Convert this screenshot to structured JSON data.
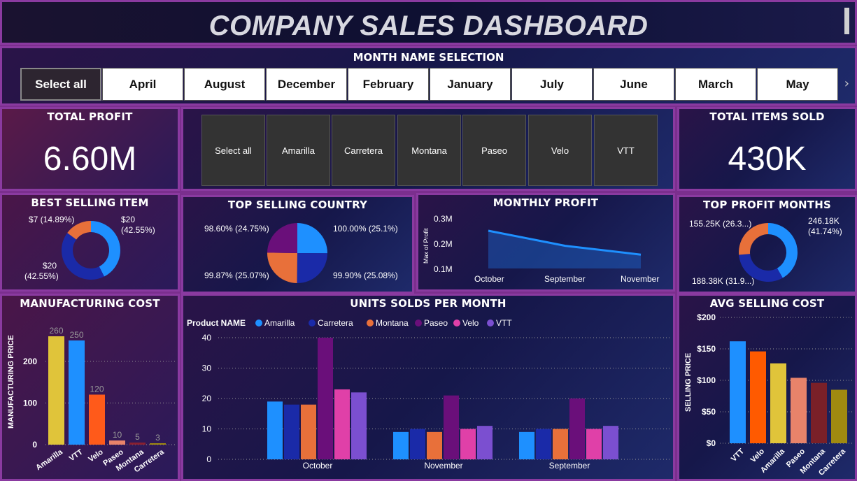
{
  "header": {
    "title": "COMPANY SALES DASHBOARD"
  },
  "month_slicer": {
    "label": "MONTH NAME SELECTION",
    "items": [
      "Select all",
      "April",
      "August",
      "December",
      "February",
      "January",
      "July",
      "June",
      "March",
      "May"
    ],
    "selected": "Select all"
  },
  "total_profit": {
    "title": "TOTAL PROFIT",
    "value": "6.60M"
  },
  "product_slicer": {
    "items": [
      "Select all",
      "Amarilla",
      "Carretera",
      "Montana",
      "Paseo",
      "Velo",
      "VTT"
    ]
  },
  "total_items": {
    "title": "TOTAL ITEMS SOLD",
    "value": "430K"
  },
  "best_selling": {
    "title": "BEST SELLING ITEM",
    "labels": [
      "$7 (14.89%)",
      "$20 (42.55%)",
      "$20 (42.55%)"
    ],
    "values": [
      14.89,
      42.55,
      42.55
    ],
    "colors": [
      "#e8703a",
      "#1e90ff",
      "#1a2aa8"
    ]
  },
  "top_country": {
    "title": "TOP SELLING COUNTRY",
    "labels": [
      "98.60% (24.75%)",
      "100.00% (25.1%)",
      "99.87% (25.07%)",
      "99.90% (25.08%)"
    ],
    "values": [
      24.75,
      25.1,
      25.07,
      25.08
    ],
    "colors": [
      "#6a0f7a",
      "#1e90ff",
      "#e8703a",
      "#1a2aa8"
    ]
  },
  "monthly_profit": {
    "title": "MONTHLY PROFIT",
    "ylabel": "Max of Profit",
    "yticks": [
      "0.3M",
      "0.2M",
      "0.1M"
    ],
    "xticks": [
      "October",
      "September",
      "November"
    ]
  },
  "top_profit_months": {
    "title": "TOP PROFIT MONTHS",
    "labels": [
      "155.25K (26.3...)",
      "246.18K (41.74%)",
      "188.38K (31.9...)"
    ],
    "values": [
      26.3,
      41.74,
      31.9
    ],
    "colors": [
      "#e8703a",
      "#1e90ff",
      "#1a2aa8"
    ]
  },
  "manufacturing": {
    "title": "MANUFACTURING COST",
    "ylabel": "MANUFACTURING PRICE",
    "yticks": [
      "0",
      "100",
      "200"
    ]
  },
  "units": {
    "title": "UNITS SOLDS PER MONTH",
    "legend_title": "Product NAME",
    "yticks": [
      "0",
      "10",
      "20",
      "30",
      "40"
    ]
  },
  "avg_cost": {
    "title": "AVG SELLING COST",
    "ylabel": "SELLING PRICE",
    "yticks": [
      "$0",
      "$50",
      "$100",
      "$150",
      "$200"
    ]
  },
  "chart_data": [
    {
      "type": "bar",
      "title": "MANUFACTURING COST",
      "ylabel": "MANUFACTURING PRICE",
      "categories": [
        "Amarilla",
        "VTT",
        "Velo",
        "Paseo",
        "Montana",
        "Carretera"
      ],
      "values": [
        260,
        250,
        120,
        10,
        5,
        3
      ],
      "colors": [
        "#e0c43a",
        "#1e90ff",
        "#ff5a1a",
        "#e8836a",
        "#8a2030",
        "#a08a10"
      ],
      "ylim": [
        0,
        280
      ]
    },
    {
      "type": "line",
      "title": "MONTHLY PROFIT",
      "ylabel": "Max of Profit",
      "categories": [
        "October",
        "September",
        "November"
      ],
      "values": [
        0.25,
        0.19,
        0.155
      ],
      "ylim": [
        0.1,
        0.3
      ],
      "color": "#1e90ff"
    },
    {
      "type": "bar",
      "title": "UNITS SOLDS PER MONTH",
      "categories": [
        "October",
        "November",
        "September"
      ],
      "series": [
        {
          "name": "Amarilla",
          "color": "#1e90ff",
          "values": [
            19,
            9,
            9
          ]
        },
        {
          "name": "Carretera",
          "color": "#1a2aa8",
          "values": [
            18,
            10,
            10
          ]
        },
        {
          "name": "Montana",
          "color": "#e8703a",
          "values": [
            18,
            9,
            10
          ]
        },
        {
          "name": "Paseo",
          "color": "#6a0f7a",
          "values": [
            40,
            21,
            20
          ]
        },
        {
          "name": "Velo",
          "color": "#e040a8",
          "values": [
            23,
            10,
            10
          ]
        },
        {
          "name": "VTT",
          "color": "#7b4fd0",
          "values": [
            22,
            11,
            11
          ]
        }
      ],
      "ylim": [
        0,
        40
      ]
    },
    {
      "type": "bar",
      "title": "AVG SELLING COST",
      "ylabel": "SELLING PRICE",
      "categories": [
        "VTT",
        "Velo",
        "Amarilla",
        "Paseo",
        "Montana",
        "Carretera"
      ],
      "values": [
        162,
        146,
        127,
        104,
        96,
        85
      ],
      "colors": [
        "#1e90ff",
        "#ff5a00",
        "#e0c43a",
        "#e8836a",
        "#7a2028",
        "#a08a10"
      ],
      "ylim": [
        0,
        200
      ]
    }
  ]
}
